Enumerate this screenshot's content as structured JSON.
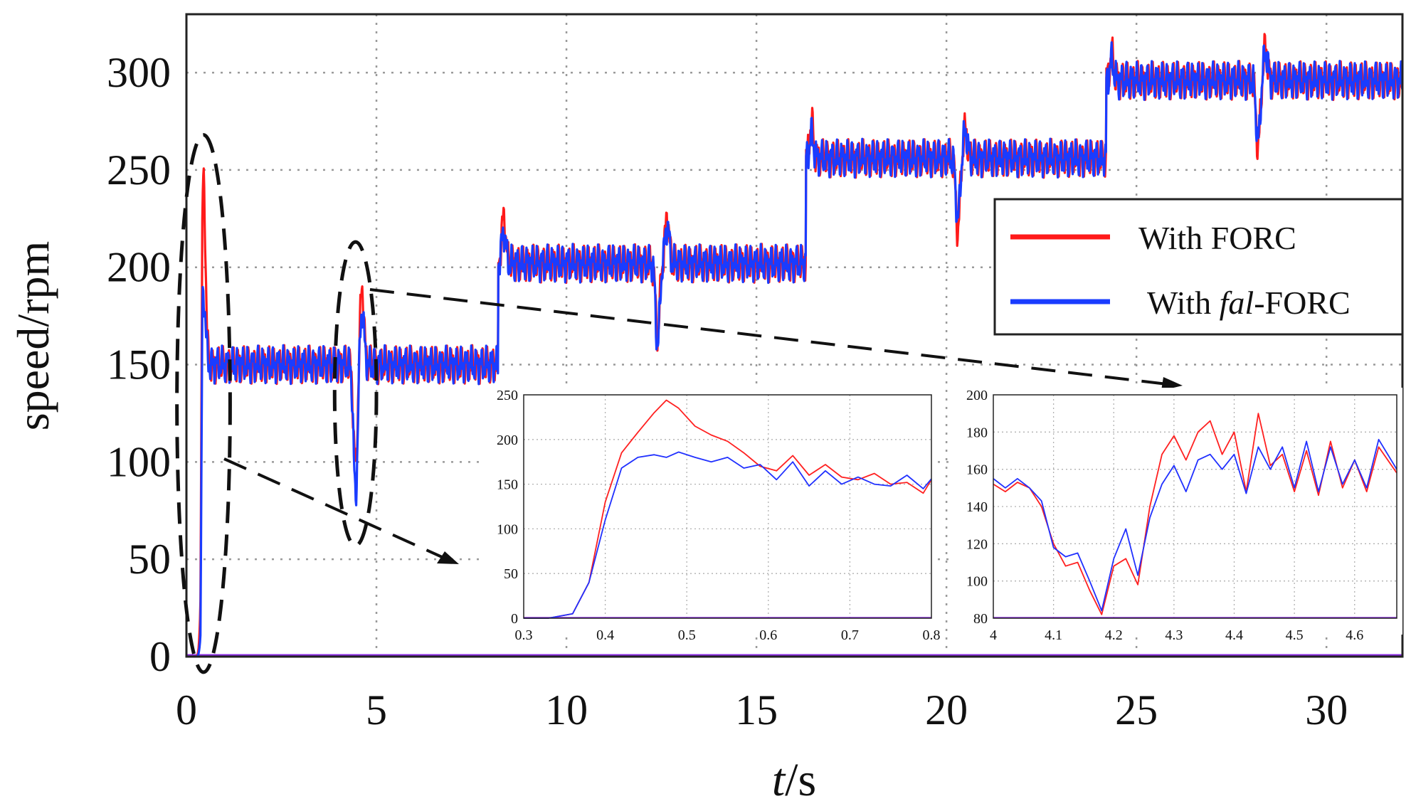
{
  "chart_data": [
    {
      "id": "main",
      "type": "line",
      "title": "",
      "xlabel_italic": "t",
      "xlabel_rest": "/s",
      "ylabel": "speed/rpm",
      "xlim": [
        0,
        32
      ],
      "ylim": [
        0,
        330
      ],
      "xticks": [
        0,
        5,
        10,
        15,
        20,
        25,
        30
      ],
      "yticks": [
        0,
        50,
        100,
        150,
        200,
        250,
        300
      ],
      "grid": true,
      "legend": {
        "placement": "center-right",
        "entries": [
          {
            "name_plain": "With FORC",
            "name_prefix": "With ",
            "name_italic": "",
            "name_suffix": "",
            "color": "#ff1a1a"
          },
          {
            "name_plain": "With fal-FORC",
            "name_prefix": "With ",
            "name_italic": "fal",
            "name_suffix": "-FORC",
            "color": "#1a3cff"
          }
        ]
      },
      "setpoint_steps": [
        {
          "t": 0,
          "rpm": 0
        },
        {
          "t": 0.37,
          "rpm": 150
        },
        {
          "t": 8.2,
          "rpm": 200
        },
        {
          "t": 16.3,
          "rpm": 255
        },
        {
          "t": 24.2,
          "rpm": 296
        }
      ],
      "series": [
        {
          "name": "With FORC",
          "color": "#ff1a1a",
          "ripple_rpm": 10,
          "steady_levels": [
            150,
            202,
            256,
            296
          ],
          "events": [
            {
              "t": 0.45,
              "rpm": 244,
              "kind": "overshoot"
            },
            {
              "t": 4.45,
              "rpm": 97,
              "kind": "dip"
            },
            {
              "t": 4.62,
              "rpm": 190,
              "kind": "overshoot"
            },
            {
              "t": 8.35,
              "rpm": 226,
              "kind": "overshoot"
            },
            {
              "t": 12.4,
              "rpm": 165,
              "kind": "dip"
            },
            {
              "t": 12.65,
              "rpm": 226,
              "kind": "overshoot"
            },
            {
              "t": 16.45,
              "rpm": 274,
              "kind": "overshoot"
            },
            {
              "t": 20.3,
              "rpm": 219,
              "kind": "dip"
            },
            {
              "t": 20.5,
              "rpm": 271,
              "kind": "overshoot"
            },
            {
              "t": 24.35,
              "rpm": 309,
              "kind": "overshoot"
            },
            {
              "t": 28.2,
              "rpm": 262,
              "kind": "dip"
            },
            {
              "t": 28.4,
              "rpm": 313,
              "kind": "overshoot"
            }
          ]
        },
        {
          "name": "With fal-FORC",
          "color": "#1a3cff",
          "ripple_rpm": 10,
          "steady_levels": [
            150,
            202,
            256,
            296
          ],
          "events": [
            {
              "t": 0.45,
              "rpm": 186,
              "kind": "overshoot"
            },
            {
              "t": 4.45,
              "rpm": 82,
              "kind": "dip"
            },
            {
              "t": 4.62,
              "rpm": 178,
              "kind": "overshoot"
            },
            {
              "t": 8.35,
              "rpm": 218,
              "kind": "overshoot"
            },
            {
              "t": 12.4,
              "rpm": 160,
              "kind": "dip"
            },
            {
              "t": 12.65,
              "rpm": 222,
              "kind": "overshoot"
            },
            {
              "t": 16.45,
              "rpm": 268,
              "kind": "overshoot"
            },
            {
              "t": 20.3,
              "rpm": 225,
              "kind": "dip"
            },
            {
              "t": 20.5,
              "rpm": 270,
              "kind": "overshoot"
            },
            {
              "t": 24.35,
              "rpm": 306,
              "kind": "overshoot"
            },
            {
              "t": 28.2,
              "rpm": 265,
              "kind": "dip"
            },
            {
              "t": 28.4,
              "rpm": 311,
              "kind": "overshoot"
            }
          ]
        }
      ],
      "annotations": [
        {
          "kind": "dashed-ellipse",
          "t_center": 0.45,
          "rpm_center": 130,
          "t_halfwidth": 0.7,
          "rpm_halfheight": 138
        },
        {
          "kind": "dashed-ellipse",
          "t_center": 4.45,
          "rpm_center": 135,
          "t_halfwidth": 0.55,
          "rpm_halfheight": 78
        }
      ]
    },
    {
      "id": "inset-startup",
      "type": "line",
      "title": "",
      "xlim": [
        0.3,
        0.8
      ],
      "ylim": [
        0,
        250
      ],
      "xticks": [
        0.3,
        0.4,
        0.5,
        0.6,
        0.7,
        0.8
      ],
      "xtick_labels": [
        "0.3",
        "0.4",
        "0.5",
        "0.6",
        "0.7",
        "0.8"
      ],
      "yticks": [
        0,
        50,
        100,
        150,
        200,
        250
      ],
      "ytick_labels": [
        "0",
        "50",
        "100",
        "150",
        "200",
        "250"
      ],
      "grid": true,
      "series": [
        {
          "name": "With FORC",
          "color": "#ff2020",
          "x": [
            0.3,
            0.33,
            0.36,
            0.38,
            0.4,
            0.42,
            0.44,
            0.46,
            0.475,
            0.49,
            0.51,
            0.53,
            0.55,
            0.57,
            0.59,
            0.61,
            0.63,
            0.65,
            0.67,
            0.69,
            0.71,
            0.73,
            0.75,
            0.77,
            0.79,
            0.8
          ],
          "y": [
            0,
            0,
            5,
            40,
            130,
            185,
            208,
            230,
            244,
            235,
            215,
            205,
            198,
            185,
            170,
            165,
            182,
            160,
            172,
            158,
            155,
            162,
            150,
            152,
            140,
            155
          ]
        },
        {
          "name": "With fal-FORC",
          "color": "#2030ff",
          "x": [
            0.3,
            0.33,
            0.36,
            0.38,
            0.4,
            0.42,
            0.44,
            0.46,
            0.475,
            0.49,
            0.51,
            0.53,
            0.55,
            0.57,
            0.59,
            0.61,
            0.63,
            0.65,
            0.67,
            0.69,
            0.71,
            0.73,
            0.75,
            0.77,
            0.79,
            0.8
          ],
          "y": [
            0,
            0,
            5,
            40,
            110,
            168,
            180,
            183,
            180,
            186,
            180,
            175,
            180,
            168,
            172,
            155,
            175,
            148,
            165,
            150,
            158,
            150,
            148,
            160,
            145,
            156
          ]
        }
      ]
    },
    {
      "id": "inset-disturbance",
      "type": "line",
      "title": "",
      "xlim": [
        4.0,
        4.67
      ],
      "ylim": [
        80,
        200
      ],
      "xticks": [
        4.0,
        4.1,
        4.2,
        4.3,
        4.4,
        4.5,
        4.6
      ],
      "xtick_labels": [
        "4",
        "4.1",
        "4.2",
        "4.3",
        "4.4",
        "4.5",
        "4.6"
      ],
      "yticks": [
        80,
        100,
        120,
        140,
        160,
        180,
        200
      ],
      "ytick_labels": [
        "80",
        "100",
        "120",
        "140",
        "160",
        "180",
        "200"
      ],
      "grid": true,
      "series": [
        {
          "name": "With FORC",
          "color": "#ff2020",
          "x": [
            4.0,
            4.02,
            4.04,
            4.06,
            4.08,
            4.1,
            4.12,
            4.14,
            4.16,
            4.18,
            4.2,
            4.22,
            4.24,
            4.26,
            4.28,
            4.3,
            4.32,
            4.34,
            4.36,
            4.38,
            4.4,
            4.42,
            4.44,
            4.46,
            4.48,
            4.5,
            4.52,
            4.54,
            4.56,
            4.58,
            4.6,
            4.62,
            4.64,
            4.67
          ],
          "y": [
            152,
            148,
            153,
            150,
            140,
            120,
            108,
            110,
            95,
            82,
            108,
            112,
            98,
            140,
            168,
            178,
            165,
            180,
            186,
            168,
            180,
            148,
            190,
            162,
            168,
            148,
            170,
            146,
            175,
            150,
            165,
            148,
            172,
            158
          ]
        },
        {
          "name": "With fal-FORC",
          "color": "#2030ff",
          "x": [
            4.0,
            4.02,
            4.04,
            4.06,
            4.08,
            4.1,
            4.12,
            4.14,
            4.16,
            4.18,
            4.2,
            4.22,
            4.24,
            4.26,
            4.28,
            4.3,
            4.32,
            4.34,
            4.36,
            4.38,
            4.4,
            4.42,
            4.44,
            4.46,
            4.48,
            4.5,
            4.52,
            4.54,
            4.56,
            4.58,
            4.6,
            4.62,
            4.64,
            4.67
          ],
          "y": [
            155,
            150,
            155,
            150,
            143,
            118,
            113,
            115,
            100,
            84,
            112,
            128,
            103,
            134,
            152,
            162,
            148,
            165,
            168,
            160,
            168,
            147,
            172,
            160,
            172,
            150,
            175,
            148,
            172,
            152,
            165,
            150,
            176,
            160
          ]
        }
      ]
    }
  ]
}
